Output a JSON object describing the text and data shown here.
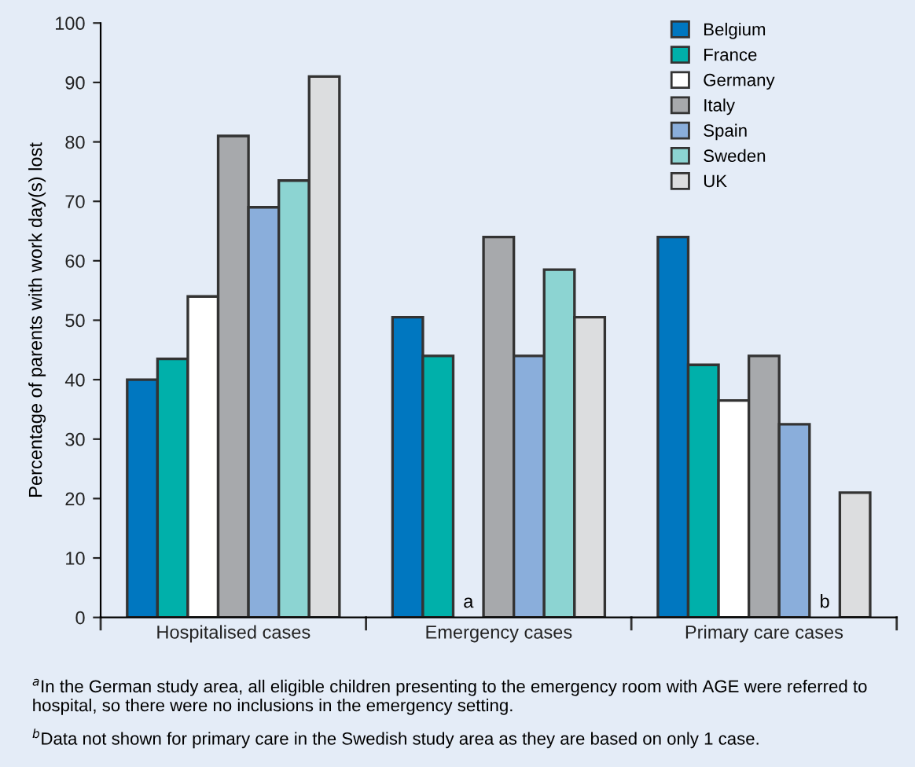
{
  "chart_data": {
    "type": "bar",
    "ylabel": "Percentage of parents with work day(s) lost",
    "categories": [
      "Hospitalised cases",
      "Emergency cases",
      "Primary care cases"
    ],
    "series": [
      {
        "name": "Belgium",
        "color": "#0077c0",
        "values": [
          40,
          50.5,
          64
        ]
      },
      {
        "name": "France",
        "color": "#00b0aa",
        "values": [
          43.5,
          44,
          42.5
        ]
      },
      {
        "name": "Germany",
        "color": "#ffffff",
        "values": [
          54,
          null,
          36.5
        ]
      },
      {
        "name": "Italy",
        "color": "#a7a9ac",
        "values": [
          81,
          64,
          44
        ]
      },
      {
        "name": "Spain",
        "color": "#8aaedb",
        "values": [
          69,
          44,
          32.5
        ]
      },
      {
        "name": "Sweden",
        "color": "#8cd4d2",
        "values": [
          73.5,
          58.5,
          null
        ]
      },
      {
        "name": "UK",
        "color": "#dcdddf",
        "values": [
          91,
          50.5,
          21
        ]
      }
    ],
    "ylim": [
      0,
      100
    ],
    "yticks": [
      0,
      10,
      20,
      30,
      40,
      50,
      60,
      70,
      80,
      90,
      100
    ],
    "legend": "top right",
    "annotations": [
      "a",
      "b",
      "$^{a}$In the German study area, all eligible children presenting to the emergency room with AGE were referred to hospital, so there were no inclusions in the emergency setting.",
      "$^{b}$Data not shown for primary care in the Swedish study area as they are based on only 1 case."
    ]
  }
}
